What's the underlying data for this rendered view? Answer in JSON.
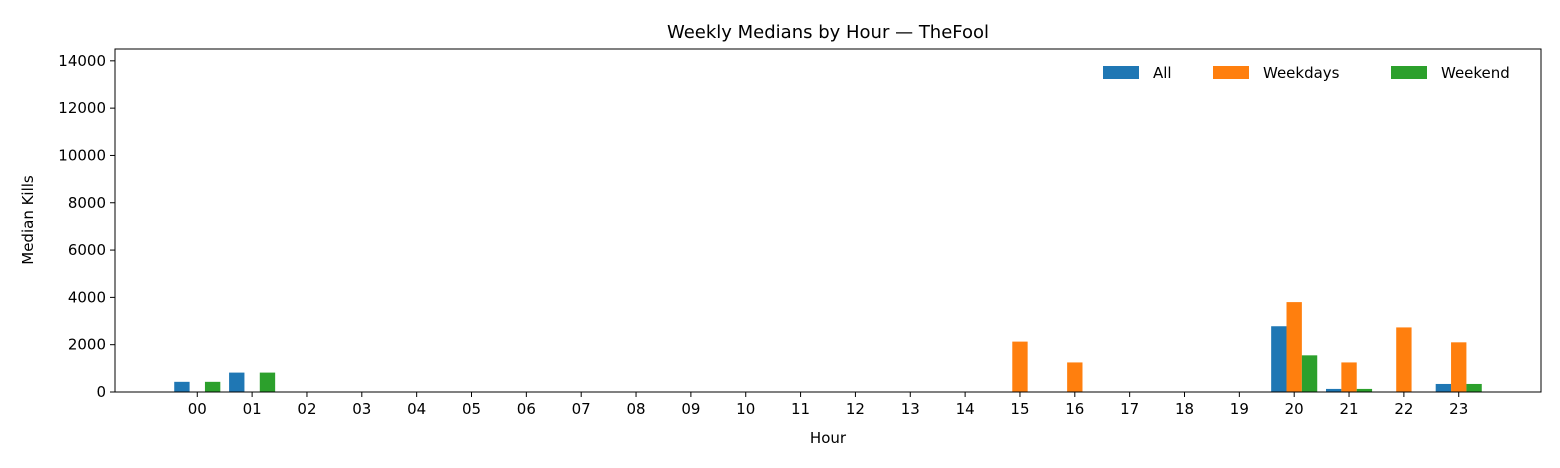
{
  "chart_data": {
    "type": "bar",
    "title": "Weekly Medians by Hour — TheFool",
    "xlabel": "Hour",
    "ylabel": "Median Kills",
    "categories": [
      "00",
      "01",
      "02",
      "03",
      "04",
      "05",
      "06",
      "07",
      "08",
      "09",
      "10",
      "11",
      "12",
      "13",
      "14",
      "15",
      "16",
      "17",
      "18",
      "19",
      "20",
      "21",
      "22",
      "23"
    ],
    "series": [
      {
        "name": "All",
        "color": "#1f77b4",
        "values": [
          430,
          820,
          0,
          0,
          0,
          0,
          0,
          0,
          0,
          0,
          0,
          0,
          0,
          0,
          0,
          0,
          0,
          0,
          0,
          0,
          2780,
          130,
          0,
          340
        ]
      },
      {
        "name": "Weekdays",
        "color": "#ff7f0e",
        "values": [
          0,
          0,
          0,
          0,
          0,
          0,
          0,
          0,
          0,
          0,
          0,
          0,
          0,
          0,
          0,
          2130,
          1250,
          0,
          0,
          0,
          3800,
          1250,
          2730,
          2100
        ]
      },
      {
        "name": "Weekend",
        "color": "#2ca02c",
        "values": [
          430,
          820,
          0,
          0,
          0,
          0,
          0,
          0,
          0,
          0,
          0,
          0,
          0,
          0,
          0,
          0,
          0,
          0,
          0,
          0,
          1550,
          130,
          0,
          340
        ]
      }
    ],
    "ylim": [
      0,
      14500
    ],
    "yticks": [
      0,
      2000,
      4000,
      6000,
      8000,
      10000,
      12000,
      14000
    ],
    "grid": false,
    "legend_position": "top-right"
  }
}
